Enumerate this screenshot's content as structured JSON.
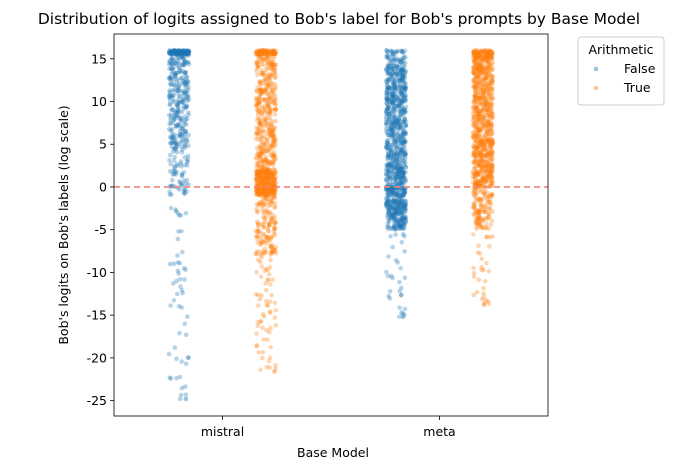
{
  "chart_data": {
    "type": "scatter",
    "subtype": "strip",
    "title": "Distribution of logits assigned to Bob's label for Bob's prompts by Base Model",
    "xlabel": "Base Model",
    "ylabel": "Bob's logits on Bob's labels (log scale)",
    "categories": [
      "mistral",
      "meta"
    ],
    "ylim": [
      -26.8,
      17.9
    ],
    "yticks": [
      -25,
      -20,
      -15,
      -10,
      -5,
      0,
      5,
      10,
      15
    ],
    "grid": false,
    "reference_line": {
      "y": 0,
      "color": "#f4817b",
      "style": "dashed"
    },
    "legend": {
      "title": "Arithmetic",
      "placement": "outside-top-right"
    },
    "series": [
      {
        "name": "False",
        "color": "#1f77b4",
        "groups": [
          {
            "category": "mistral",
            "n_points": 520,
            "max": 16,
            "min": -24.8,
            "segments": [
              [
                15.5,
                16.0,
                0.28
              ],
              [
                5.0,
                15.5,
                0.48
              ],
              [
                -1.0,
                5.0,
                0.14
              ],
              [
                -25.0,
                -1.0,
                0.1
              ]
            ]
          },
          {
            "category": "meta",
            "n_points": 1000,
            "max": 16,
            "min": -15.2,
            "segments": [
              [
                14.0,
                16.0,
                0.06
              ],
              [
                0.0,
                14.0,
                0.62
              ],
              [
                -5.0,
                0.0,
                0.29
              ],
              [
                -15.2,
                -5.0,
                0.03
              ]
            ]
          }
        ]
      },
      {
        "name": "True",
        "color": "#ff7f0e",
        "groups": [
          {
            "category": "mistral",
            "n_points": 1000,
            "max": 16,
            "min": -21.6,
            "segments": [
              [
                15.5,
                16.0,
                0.1
              ],
              [
                2.0,
                15.5,
                0.38
              ],
              [
                -1.0,
                2.0,
                0.32
              ],
              [
                -8.0,
                -1.0,
                0.14
              ],
              [
                -21.6,
                -8.0,
                0.06
              ]
            ]
          },
          {
            "category": "meta",
            "n_points": 1000,
            "max": 16,
            "min": -13.8,
            "segments": [
              [
                15.0,
                16.0,
                0.12
              ],
              [
                0.0,
                15.0,
                0.73
              ],
              [
                -5.0,
                0.0,
                0.12
              ],
              [
                -13.8,
                -5.0,
                0.03
              ]
            ]
          }
        ]
      }
    ]
  }
}
